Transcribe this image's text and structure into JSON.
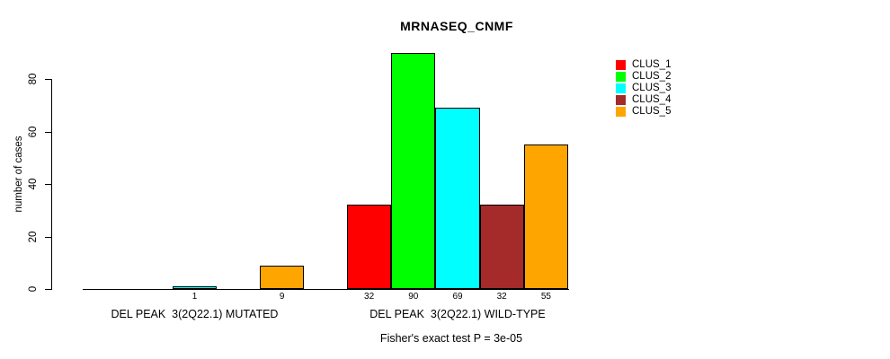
{
  "chart_data": {
    "type": "bar",
    "title": "MRNASEQ_CNMF",
    "ylabel": "number of cases",
    "xlabel": "",
    "ylim": [
      0,
      90
    ],
    "yticks": [
      0,
      20,
      40,
      60,
      80
    ],
    "grid": false,
    "legend_position": "top-right",
    "categories": [
      "DEL PEAK  3(2Q22.1) MUTATED",
      "DEL PEAK  3(2Q22.1) WILD-TYPE"
    ],
    "series": [
      {
        "name": "CLUS_1",
        "color": "#FF0000",
        "values": [
          0,
          32
        ]
      },
      {
        "name": "CLUS_2",
        "color": "#00FF00",
        "values": [
          0,
          90
        ]
      },
      {
        "name": "CLUS_3",
        "color": "#00FFFF",
        "values": [
          1,
          69
        ]
      },
      {
        "name": "CLUS_4",
        "color": "#A52A2A",
        "values": [
          0,
          32
        ]
      },
      {
        "name": "CLUS_5",
        "color": "#FFA500",
        "values": [
          9,
          55
        ]
      }
    ],
    "bar_value_labels_visible": [
      "1",
      "9",
      "32",
      "90",
      "69",
      "32",
      "55"
    ],
    "footnote": "Fisher's exact test P = 3e-05",
    "axis_color": "#000000",
    "background_color": "#ffffff"
  }
}
